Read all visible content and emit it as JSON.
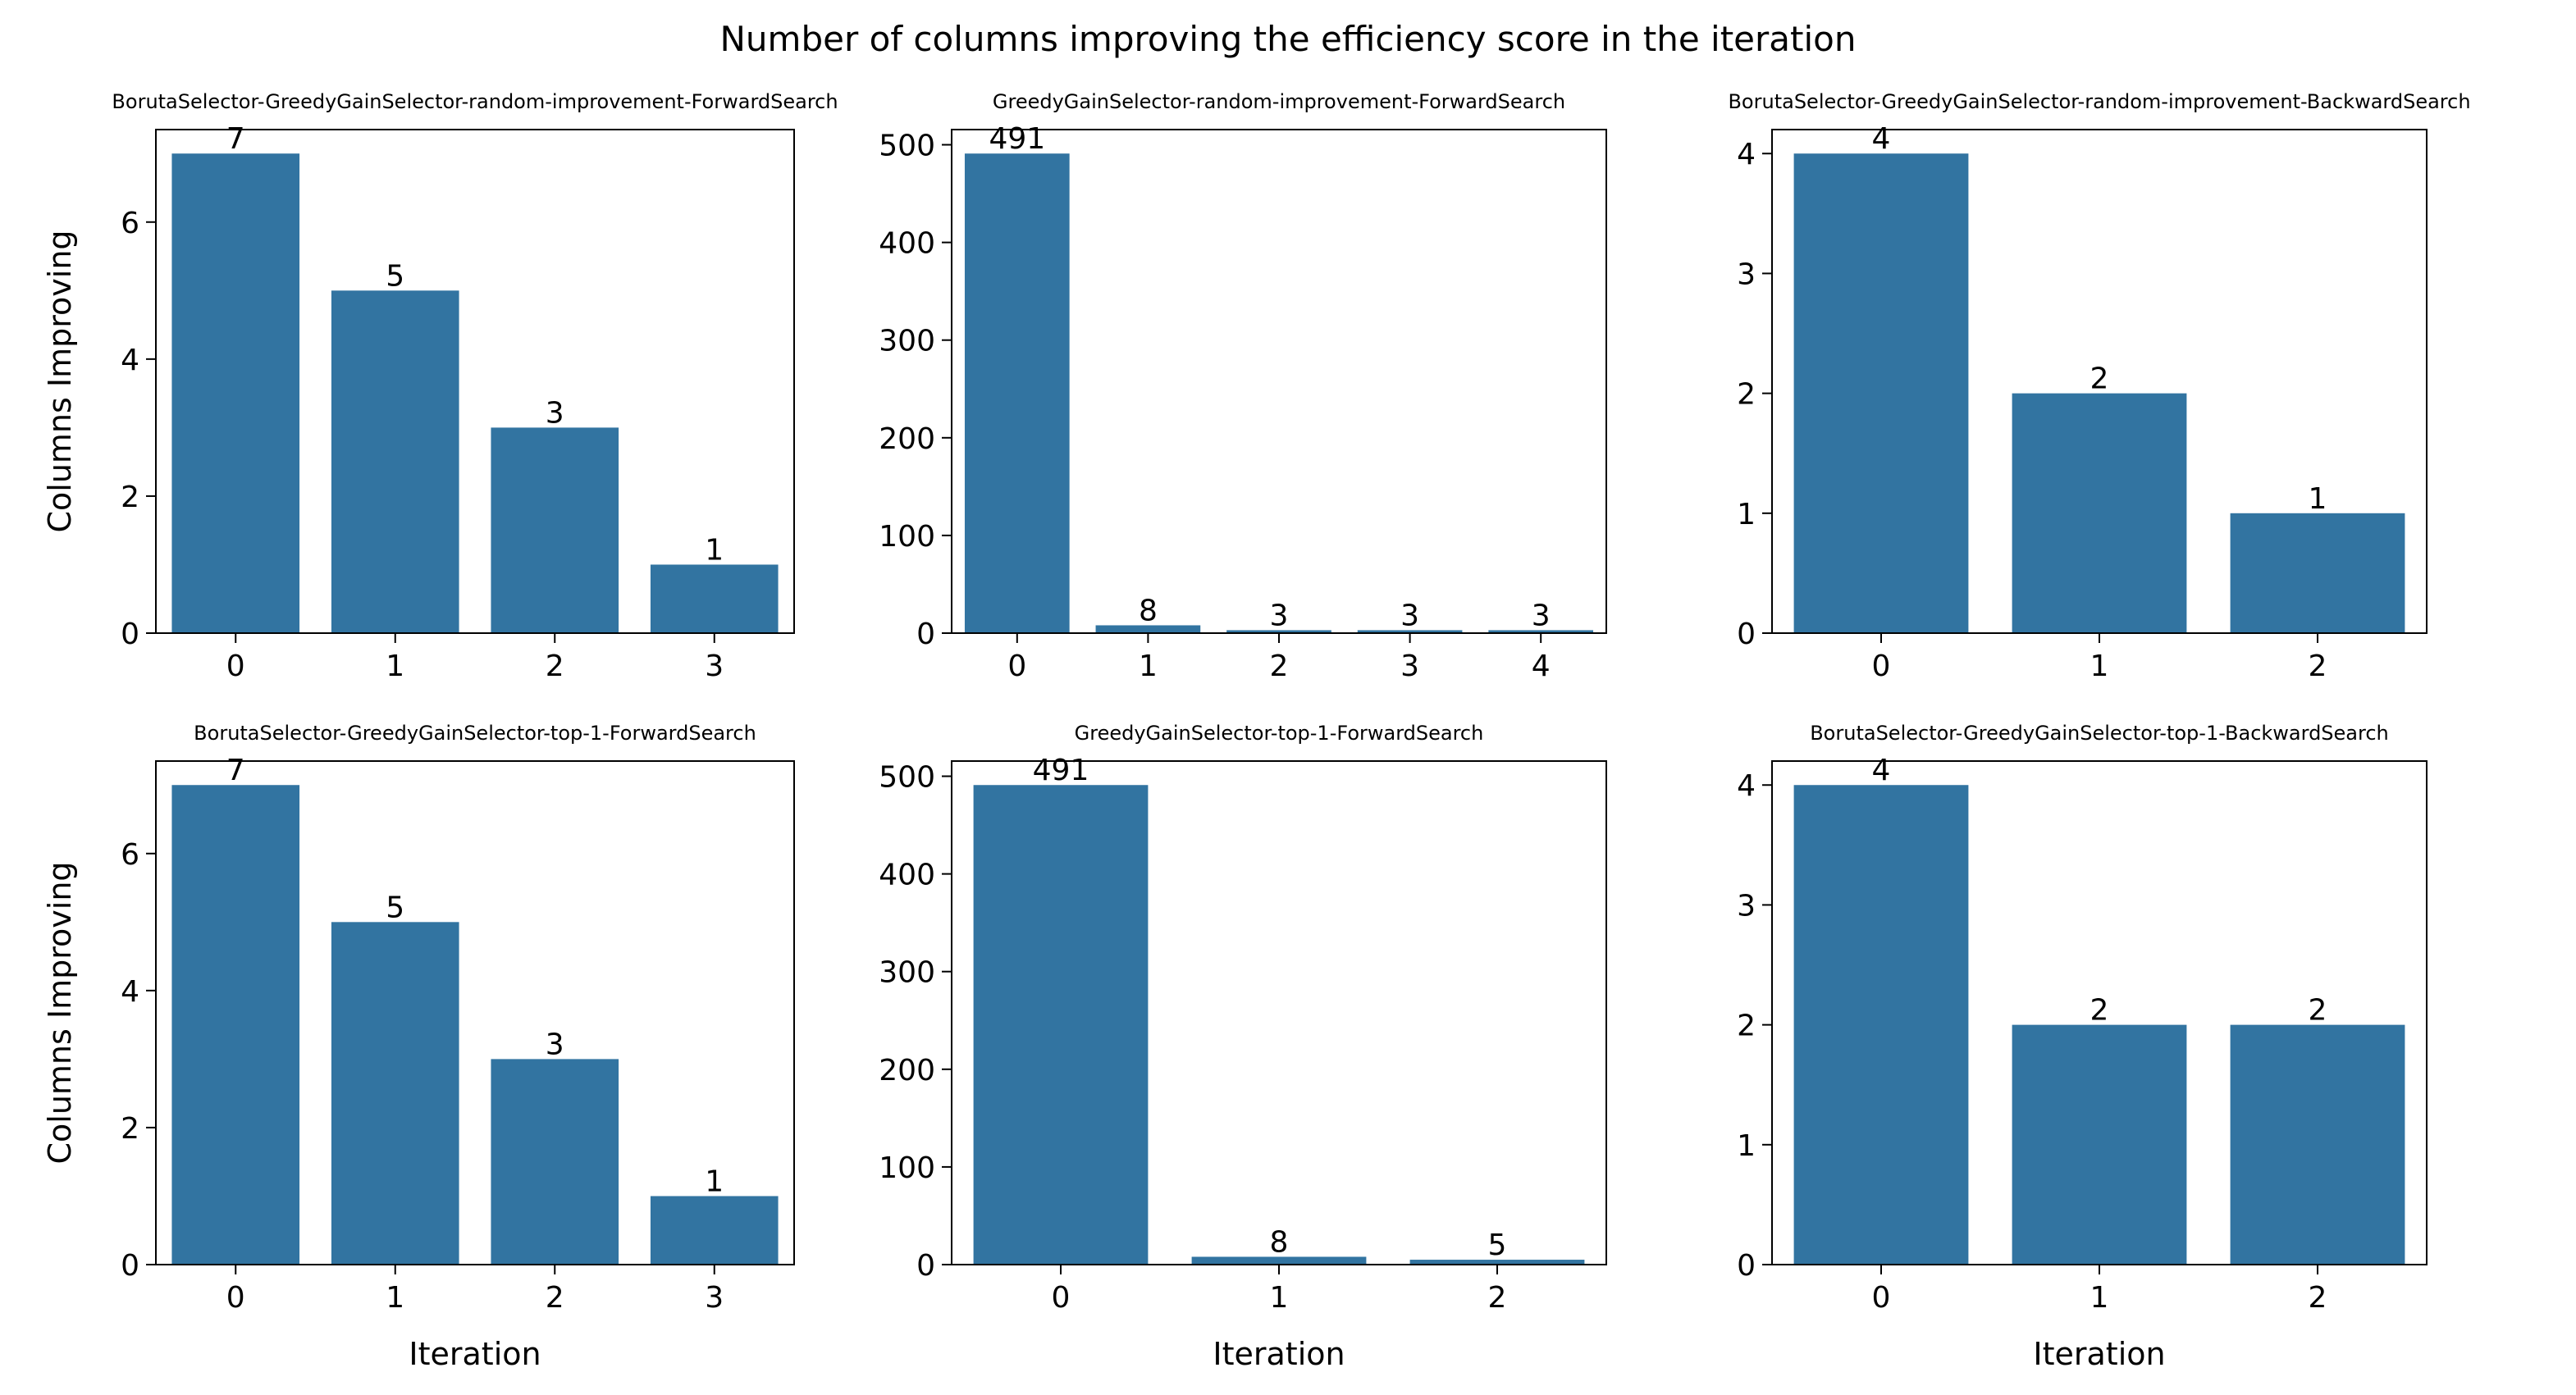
{
  "figure": {
    "title": "Number of columns improving the efficiency score in the iteration",
    "bar_color": "#3274a1"
  },
  "chart_data": [
    {
      "type": "bar",
      "title": "BorutaSelector-GreedyGainSelector-random-improvement-ForwardSearch",
      "categories": [
        "0",
        "1",
        "2",
        "3"
      ],
      "values": [
        7,
        5,
        3,
        1
      ],
      "xlabel": "",
      "ylabel": "Columns Improving",
      "ylim": [
        0,
        7.35
      ],
      "yticks": [
        0,
        2,
        4,
        6
      ],
      "grid": false
    },
    {
      "type": "bar",
      "title": "GreedyGainSelector-random-improvement-ForwardSearch",
      "categories": [
        "0",
        "1",
        "2",
        "3",
        "4"
      ],
      "values": [
        491,
        8,
        3,
        3,
        3
      ],
      "xlabel": "",
      "ylabel": "",
      "ylim": [
        0,
        515.55
      ],
      "yticks": [
        0,
        100,
        200,
        300,
        400,
        500
      ],
      "grid": false
    },
    {
      "type": "bar",
      "title": "BorutaSelector-GreedyGainSelector-random-improvement-BackwardSearch",
      "categories": [
        "0",
        "1",
        "2"
      ],
      "values": [
        4,
        2,
        1
      ],
      "xlabel": "",
      "ylabel": "",
      "ylim": [
        0,
        4.2
      ],
      "yticks": [
        0,
        1,
        2,
        3,
        4
      ],
      "grid": false
    },
    {
      "type": "bar",
      "title": "BorutaSelector-GreedyGainSelector-top-1-ForwardSearch",
      "categories": [
        "0",
        "1",
        "2",
        "3"
      ],
      "values": [
        7,
        5,
        3,
        1
      ],
      "xlabel": "Iteration",
      "ylabel": "Columns Improving",
      "ylim": [
        0,
        7.35
      ],
      "yticks": [
        0,
        2,
        4,
        6
      ],
      "grid": false
    },
    {
      "type": "bar",
      "title": "GreedyGainSelector-top-1-ForwardSearch",
      "categories": [
        "0",
        "1",
        "2"
      ],
      "values": [
        491,
        8,
        5
      ],
      "xlabel": "Iteration",
      "ylabel": "",
      "ylim": [
        0,
        515.55
      ],
      "yticks": [
        0,
        100,
        200,
        300,
        400,
        500
      ],
      "grid": false
    },
    {
      "type": "bar",
      "title": "BorutaSelector-GreedyGainSelector-top-1-BackwardSearch",
      "categories": [
        "0",
        "1",
        "2"
      ],
      "values": [
        4,
        2,
        2
      ],
      "xlabel": "Iteration",
      "ylabel": "",
      "ylim": [
        0,
        4.2
      ],
      "yticks": [
        0,
        1,
        2,
        3,
        4
      ],
      "grid": false
    }
  ]
}
